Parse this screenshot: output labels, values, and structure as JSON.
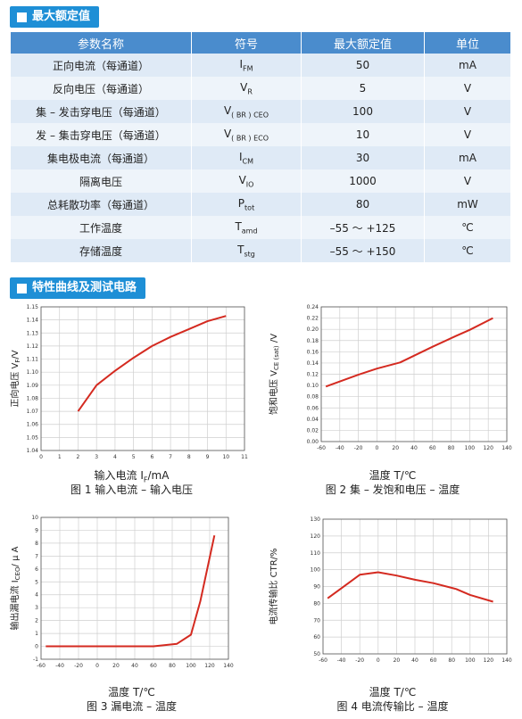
{
  "section1": {
    "title": "最大额定值"
  },
  "section2": {
    "title": "特性曲线及测试电路"
  },
  "table": {
    "headers": [
      "参数名称",
      "符号",
      "最大额定值",
      "单位"
    ],
    "rows": [
      {
        "param": "正向电流（每通道）",
        "sym_main": "I",
        "sym_sub": "FM",
        "value": "50",
        "unit": "mA"
      },
      {
        "param": "反向电压（每通道）",
        "sym_main": "V",
        "sym_sub": "R",
        "value": "5",
        "unit": "V"
      },
      {
        "param": "集 – 发击穿电压（每通道）",
        "sym_main": "V",
        "sym_sub": "( BR ) CEO",
        "value": "100",
        "unit": "V"
      },
      {
        "param": "发 – 集击穿电压（每通道）",
        "sym_main": "V",
        "sym_sub": "( BR ) ECO",
        "value": "10",
        "unit": "V"
      },
      {
        "param": "集电极电流（每通道）",
        "sym_main": "I",
        "sym_sub": "CM",
        "value": "30",
        "unit": "mA"
      },
      {
        "param": "隔离电压",
        "sym_main": "V",
        "sym_sub": "IO",
        "value": "1000",
        "unit": "V"
      },
      {
        "param": "总耗散功率（每通道）",
        "sym_main": "P",
        "sym_sub": "tot",
        "value": "80",
        "unit": "mW"
      },
      {
        "param": "工作温度",
        "sym_main": "T",
        "sym_sub": "amd",
        "value": "–55 ～ +125",
        "unit": "℃"
      },
      {
        "param": "存储温度",
        "sym_main": "T",
        "sym_sub": "stg",
        "value": "–55 ～ +150",
        "unit": "℃"
      }
    ]
  },
  "chart_data": [
    {
      "type": "line",
      "xlabel": "输入电流 I_F/mA",
      "ylabel": "正向电压 V_F/V",
      "caption": "图 1 输入电流 – 输入电压",
      "xlim": [
        0,
        11
      ],
      "ylim": [
        1.04,
        1.15
      ],
      "xticks": [
        0,
        1,
        2,
        3,
        4,
        5,
        6,
        7,
        8,
        9,
        10,
        11
      ],
      "yticks": [
        1.04,
        1.05,
        1.06,
        1.07,
        1.08,
        1.09,
        1.1,
        1.11,
        1.12,
        1.13,
        1.14,
        1.15
      ],
      "ytick_labels": [
        "1.04",
        "1.05",
        "1.06",
        "1.07",
        "1.08",
        "1.09",
        "1.10",
        "1.11",
        "1.12",
        "1.13",
        "1.14",
        "1.15"
      ],
      "grid": true,
      "color": "#d42a20",
      "x": [
        2,
        3,
        4,
        5,
        6,
        7,
        8,
        9,
        10
      ],
      "y": [
        1.07,
        1.09,
        1.101,
        1.111,
        1.12,
        1.127,
        1.133,
        1.139,
        1.143
      ]
    },
    {
      "type": "line",
      "xlabel": "温度 T/℃",
      "ylabel": "饱和电压 V_CE (sat) /V",
      "caption": "图 2 集 – 发饱和电压 – 温度",
      "xlim": [
        -60,
        140
      ],
      "ylim": [
        0,
        0.24
      ],
      "xticks": [
        -60,
        -40,
        -20,
        0,
        20,
        40,
        60,
        80,
        100,
        120,
        140
      ],
      "yticks": [
        0,
        0.02,
        0.04,
        0.06,
        0.08,
        0.1,
        0.12,
        0.14,
        0.16,
        0.18,
        0.2,
        0.22,
        0.24
      ],
      "ytick_labels": [
        "0.00",
        "0.02",
        "0.04",
        "0.06",
        "0.08",
        "0.10",
        "0.12",
        "0.14",
        "0.16",
        "0.18",
        "0.20",
        "0.22",
        "0.24"
      ],
      "grid": true,
      "color": "#d42a20",
      "x": [
        -55,
        -20,
        0,
        25,
        60,
        85,
        100,
        125
      ],
      "y": [
        0.098,
        0.119,
        0.13,
        0.141,
        0.169,
        0.188,
        0.199,
        0.22
      ]
    },
    {
      "type": "line",
      "xlabel": "温度 T/℃",
      "ylabel": "输出漏电流 I_CEO/ μ A",
      "caption": "图 3 漏电流 – 温度",
      "xlim": [
        -60,
        140
      ],
      "ylim": [
        -1,
        10
      ],
      "xticks": [
        -60,
        -40,
        -20,
        0,
        20,
        40,
        60,
        80,
        100,
        120,
        140
      ],
      "yticks": [
        -1,
        0,
        1,
        2,
        3,
        4,
        5,
        6,
        7,
        8,
        9,
        10
      ],
      "ytick_labels": [
        "-1",
        "0",
        "1",
        "2",
        "3",
        "4",
        "5",
        "6",
        "7",
        "8",
        "9",
        "10"
      ],
      "grid": true,
      "color": "#d42a20",
      "x": [
        -55,
        -20,
        0,
        20,
        40,
        60,
        85,
        100,
        110,
        125
      ],
      "y": [
        0,
        0,
        0,
        0,
        0,
        0,
        0.2,
        0.9,
        3.5,
        8.6
      ]
    },
    {
      "type": "line",
      "xlabel": "温度 T/℃",
      "ylabel": "电流传输比 CTR/%",
      "caption": "图 4 电流传输比 – 温度",
      "xlim": [
        -60,
        140
      ],
      "ylim": [
        50,
        130
      ],
      "xticks": [
        -60,
        -40,
        -20,
        0,
        20,
        40,
        60,
        80,
        100,
        120,
        140
      ],
      "yticks": [
        50,
        60,
        70,
        80,
        90,
        100,
        110,
        120,
        130
      ],
      "ytick_labels": [
        "50",
        "60",
        "70",
        "80",
        "90",
        "100",
        "110",
        "120",
        "130"
      ],
      "grid": true,
      "color": "#d42a20",
      "x": [
        -55,
        -20,
        0,
        20,
        40,
        60,
        85,
        100,
        125
      ],
      "y": [
        83,
        97,
        98.5,
        96.5,
        94,
        92,
        88.5,
        85,
        81
      ]
    }
  ]
}
